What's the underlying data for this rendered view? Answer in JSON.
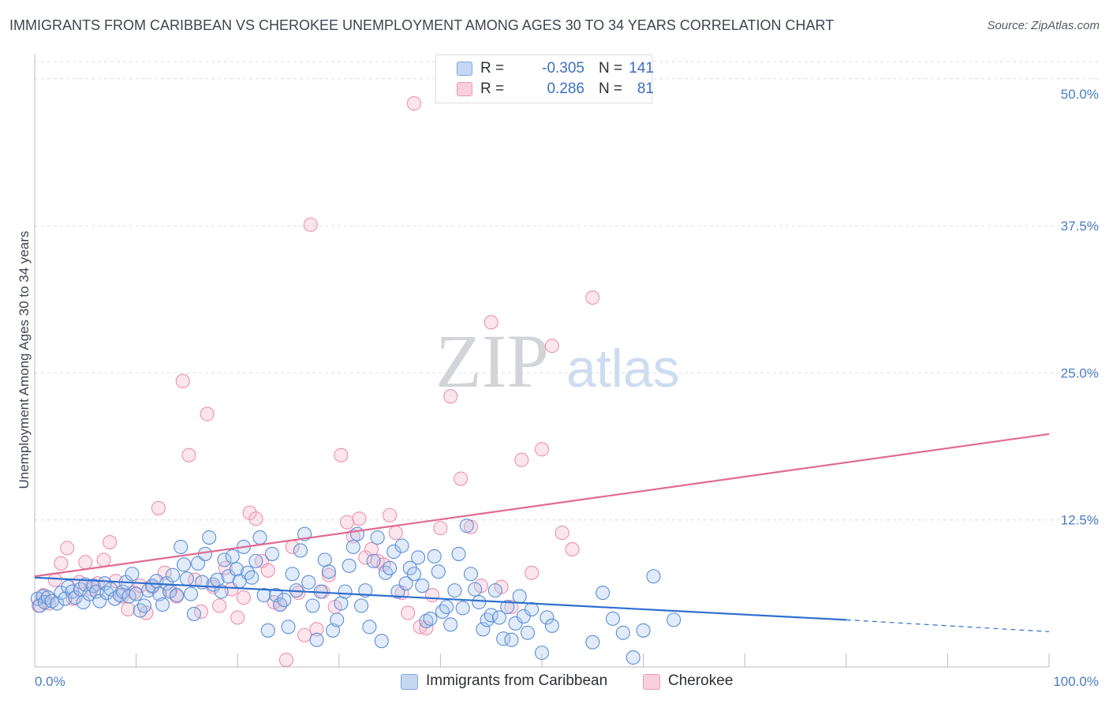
{
  "title": "IMMIGRANTS FROM CARIBBEAN VS CHEROKEE UNEMPLOYMENT AMONG AGES 30 TO 34 YEARS CORRELATION CHART",
  "source": "Source: ZipAtlas.com",
  "watermark": {
    "zip": "ZIP",
    "atlas": "atlas"
  },
  "legend": {
    "rows": [
      {
        "r_label": "R =",
        "r_value": "-0.305",
        "n_label": "N =",
        "n_value": "141",
        "color": "#a9c6ee"
      },
      {
        "r_label": "R =",
        "r_value": "0.286",
        "n_label": "N =",
        "n_value": "81",
        "color": "#f6b8cc"
      }
    ]
  },
  "bottom_legend": [
    {
      "label": "Immigrants from Caribbean",
      "color": "#a9c6ee"
    },
    {
      "label": "Cherokee",
      "color": "#f6b8cc"
    }
  ],
  "colors": {
    "blue": "#5b8fd6",
    "pink": "#ec8fae",
    "blue_line": "#2e6fcf",
    "pink_line": "#e06a92",
    "grid": "#dcdde2",
    "tick_text": "#4a7cc4"
  },
  "chart_data": {
    "type": "scatter",
    "title": "IMMIGRANTS FROM CARIBBEAN VS CHEROKEE UNEMPLOYMENT AMONG AGES 30 TO 34 YEARS CORRELATION CHART",
    "xlabel": "",
    "ylabel": "Unemployment Among Ages 30 to 34 years",
    "xlim": [
      0,
      100
    ],
    "ylim": [
      0,
      52
    ],
    "x_tick_labels": [
      "0.0%",
      "100.0%"
    ],
    "y_ticks": [
      12.5,
      25.0,
      37.5,
      50.0
    ],
    "y_tick_labels": [
      "12.5%",
      "25.0%",
      "37.5%",
      "50.0%"
    ],
    "grid": "horizontal dashed",
    "legend_placement": "top-center",
    "series": [
      {
        "name": "Immigrants from Caribbean",
        "color": "#5b8fd6",
        "trend": {
          "x": [
            0,
            80
          ],
          "y": [
            7.6,
            4.0
          ],
          "dashed_extension": {
            "x": [
              80,
              100
            ],
            "y": [
              4.0,
              3.0
            ]
          }
        },
        "points": [
          [
            0.3,
            5.8
          ],
          [
            0.5,
            5.2
          ],
          [
            0.8,
            6.0
          ],
          [
            1.0,
            5.5
          ],
          [
            1.3,
            5.9
          ],
          [
            1.7,
            5.6
          ],
          [
            2.2,
            5.4
          ],
          [
            2.6,
            6.3
          ],
          [
            3.0,
            5.8
          ],
          [
            3.3,
            6.8
          ],
          [
            3.7,
            6.4
          ],
          [
            4.0,
            5.9
          ],
          [
            4.5,
            6.6
          ],
          [
            4.8,
            5.5
          ],
          [
            5.0,
            7.0
          ],
          [
            5.4,
            6.2
          ],
          [
            5.8,
            6.9
          ],
          [
            6.1,
            6.4
          ],
          [
            6.4,
            5.6
          ],
          [
            6.9,
            7.1
          ],
          [
            7.1,
            6.3
          ],
          [
            7.5,
            6.6
          ],
          [
            7.9,
            5.8
          ],
          [
            8.4,
            6.1
          ],
          [
            8.7,
            6.4
          ],
          [
            9.0,
            7.2
          ],
          [
            9.3,
            6.0
          ],
          [
            9.6,
            7.9
          ],
          [
            10.0,
            6.2
          ],
          [
            10.4,
            4.8
          ],
          [
            10.8,
            5.2
          ],
          [
            11.2,
            6.5
          ],
          [
            11.6,
            6.9
          ],
          [
            12.0,
            7.3
          ],
          [
            12.3,
            6.2
          ],
          [
            12.6,
            5.3
          ],
          [
            13.0,
            7.1
          ],
          [
            13.3,
            6.4
          ],
          [
            13.6,
            7.8
          ],
          [
            14.0,
            6.1
          ],
          [
            14.4,
            10.2
          ],
          [
            14.7,
            8.7
          ],
          [
            15.0,
            7.5
          ],
          [
            15.4,
            6.2
          ],
          [
            15.7,
            4.5
          ],
          [
            16.1,
            8.8
          ],
          [
            16.5,
            7.2
          ],
          [
            16.8,
            9.6
          ],
          [
            17.2,
            11.0
          ],
          [
            17.6,
            7.0
          ],
          [
            18.0,
            7.4
          ],
          [
            18.4,
            6.4
          ],
          [
            18.7,
            9.1
          ],
          [
            19.1,
            7.7
          ],
          [
            19.5,
            9.4
          ],
          [
            19.9,
            8.3
          ],
          [
            20.2,
            7.3
          ],
          [
            20.6,
            10.2
          ],
          [
            21.0,
            8.0
          ],
          [
            21.4,
            7.6
          ],
          [
            21.8,
            9.0
          ],
          [
            22.2,
            11.0
          ],
          [
            22.6,
            6.1
          ],
          [
            23.0,
            3.1
          ],
          [
            23.4,
            9.6
          ],
          [
            23.8,
            6.1
          ],
          [
            24.2,
            5.3
          ],
          [
            24.6,
            5.7
          ],
          [
            25.0,
            3.4
          ],
          [
            25.4,
            7.9
          ],
          [
            25.8,
            6.5
          ],
          [
            26.2,
            9.9
          ],
          [
            26.6,
            11.3
          ],
          [
            27.0,
            7.2
          ],
          [
            27.4,
            5.2
          ],
          [
            27.8,
            2.3
          ],
          [
            28.2,
            6.4
          ],
          [
            28.6,
            9.1
          ],
          [
            29.0,
            8.1
          ],
          [
            29.4,
            3.1
          ],
          [
            29.8,
            4.0
          ],
          [
            30.2,
            5.4
          ],
          [
            30.6,
            6.4
          ],
          [
            31.0,
            8.6
          ],
          [
            31.4,
            10.2
          ],
          [
            31.8,
            11.3
          ],
          [
            32.2,
            5.2
          ],
          [
            32.6,
            6.5
          ],
          [
            33.0,
            3.4
          ],
          [
            33.4,
            9.0
          ],
          [
            33.8,
            11.0
          ],
          [
            34.2,
            2.2
          ],
          [
            34.6,
            8.0
          ],
          [
            35.0,
            8.4
          ],
          [
            35.4,
            9.8
          ],
          [
            35.8,
            6.4
          ],
          [
            36.2,
            10.3
          ],
          [
            36.6,
            7.1
          ],
          [
            37.0,
            8.4
          ],
          [
            37.4,
            7.9
          ],
          [
            37.8,
            9.3
          ],
          [
            38.2,
            6.9
          ],
          [
            38.6,
            3.9
          ],
          [
            39.0,
            4.1
          ],
          [
            39.4,
            9.4
          ],
          [
            39.8,
            8.1
          ],
          [
            40.2,
            4.7
          ],
          [
            40.6,
            5.1
          ],
          [
            41.0,
            3.6
          ],
          [
            41.4,
            6.5
          ],
          [
            41.8,
            9.6
          ],
          [
            42.2,
            5.0
          ],
          [
            42.6,
            12.0
          ],
          [
            43.0,
            7.9
          ],
          [
            43.4,
            6.6
          ],
          [
            43.8,
            5.5
          ],
          [
            44.2,
            3.2
          ],
          [
            44.6,
            4.0
          ],
          [
            45.0,
            4.4
          ],
          [
            45.4,
            6.5
          ],
          [
            45.8,
            4.2
          ],
          [
            46.2,
            2.4
          ],
          [
            46.6,
            5.1
          ],
          [
            47.0,
            2.3
          ],
          [
            47.4,
            3.7
          ],
          [
            47.8,
            6.0
          ],
          [
            48.2,
            4.3
          ],
          [
            48.6,
            2.9
          ],
          [
            49.0,
            4.9
          ],
          [
            50.0,
            1.2
          ],
          [
            50.5,
            4.2
          ],
          [
            51.0,
            3.5
          ],
          [
            55.0,
            2.1
          ],
          [
            56.0,
            6.3
          ],
          [
            57.0,
            4.1
          ],
          [
            58.0,
            2.9
          ],
          [
            59.0,
            0.8
          ],
          [
            60.0,
            3.1
          ],
          [
            61.0,
            7.7
          ],
          [
            63.0,
            4.0
          ]
        ]
      },
      {
        "name": "Cherokee",
        "color": "#ec8fae",
        "trend": {
          "x": [
            0,
            100
          ],
          "y": [
            7.7,
            19.8
          ]
        },
        "points": [
          [
            0.4,
            5.2
          ],
          [
            0.9,
            6.1
          ],
          [
            1.4,
            5.4
          ],
          [
            2.0,
            7.4
          ],
          [
            2.6,
            8.8
          ],
          [
            3.2,
            10.1
          ],
          [
            3.8,
            5.8
          ],
          [
            4.4,
            7.2
          ],
          [
            5.0,
            8.9
          ],
          [
            5.6,
            6.6
          ],
          [
            6.2,
            7.1
          ],
          [
            6.8,
            9.1
          ],
          [
            7.4,
            10.6
          ],
          [
            8.0,
            7.3
          ],
          [
            8.6,
            6.0
          ],
          [
            9.2,
            4.9
          ],
          [
            9.8,
            6.3
          ],
          [
            10.4,
            6.9
          ],
          [
            11.0,
            4.6
          ],
          [
            11.6,
            6.8
          ],
          [
            12.2,
            13.5
          ],
          [
            12.8,
            8.0
          ],
          [
            13.4,
            6.5
          ],
          [
            14.0,
            6.0
          ],
          [
            14.6,
            24.3
          ],
          [
            15.2,
            18.0
          ],
          [
            15.8,
            7.4
          ],
          [
            16.4,
            4.7
          ],
          [
            17.0,
            21.5
          ],
          [
            17.6,
            6.8
          ],
          [
            18.2,
            5.2
          ],
          [
            18.8,
            8.4
          ],
          [
            19.4,
            6.6
          ],
          [
            20.0,
            4.2
          ],
          [
            20.6,
            5.9
          ],
          [
            21.2,
            13.1
          ],
          [
            21.8,
            12.6
          ],
          [
            22.4,
            9.0
          ],
          [
            23.0,
            8.2
          ],
          [
            23.6,
            5.5
          ],
          [
            24.2,
            5.3
          ],
          [
            24.8,
            0.6
          ],
          [
            25.4,
            10.2
          ],
          [
            26.0,
            6.3
          ],
          [
            26.6,
            2.7
          ],
          [
            27.2,
            37.6
          ],
          [
            27.8,
            3.2
          ],
          [
            28.4,
            6.4
          ],
          [
            29.0,
            7.8
          ],
          [
            29.6,
            5.1
          ],
          [
            30.2,
            18.0
          ],
          [
            30.8,
            12.3
          ],
          [
            31.4,
            11.1
          ],
          [
            32.0,
            12.6
          ],
          [
            32.6,
            9.3
          ],
          [
            33.2,
            10.0
          ],
          [
            33.8,
            9.0
          ],
          [
            34.4,
            8.7
          ],
          [
            35.0,
            12.9
          ],
          [
            35.6,
            11.4
          ],
          [
            36.2,
            6.3
          ],
          [
            36.8,
            4.6
          ],
          [
            37.4,
            47.9
          ],
          [
            38.0,
            3.4
          ],
          [
            38.6,
            3.3
          ],
          [
            39.2,
            6.1
          ],
          [
            40.0,
            11.8
          ],
          [
            41.0,
            23.0
          ],
          [
            42.0,
            16.0
          ],
          [
            43.0,
            11.9
          ],
          [
            44.0,
            6.9
          ],
          [
            45.0,
            29.3
          ],
          [
            46.0,
            6.8
          ],
          [
            47.0,
            5.1
          ],
          [
            48.0,
            17.6
          ],
          [
            49.0,
            8.0
          ],
          [
            50.0,
            18.5
          ],
          [
            51.0,
            27.3
          ],
          [
            52.0,
            11.4
          ],
          [
            53.0,
            10.0
          ],
          [
            55.0,
            31.4
          ]
        ]
      }
    ]
  }
}
